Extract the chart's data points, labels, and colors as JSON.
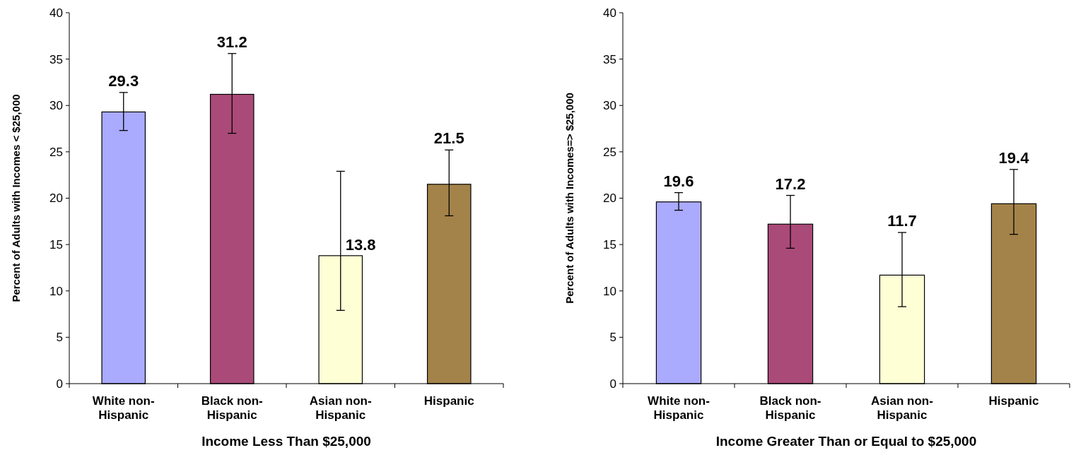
{
  "chart_data": [
    {
      "type": "bar",
      "xlabel": "Income Less Than $25,000",
      "ylabel": "Percent of Adults with Incomes < $25,000",
      "categories": [
        "White non-Hispanic",
        "Black non-Hispanic",
        "Asian non-Hispanic",
        "Hispanic"
      ],
      "values": [
        29.3,
        31.2,
        13.8,
        21.5
      ],
      "colors": [
        "#aaaaff",
        "#aa4a78",
        "#ffffd6",
        "#a4834a"
      ],
      "errors": [
        [
          27.3,
          31.4
        ],
        [
          27.0,
          35.6
        ],
        [
          7.9,
          22.9
        ],
        [
          18.1,
          25.2
        ]
      ],
      "ylim": [
        0,
        40
      ],
      "yticks": [
        0,
        5,
        10,
        15,
        20,
        25,
        30,
        35,
        40
      ],
      "data_labels": true,
      "grid": false
    },
    {
      "type": "bar",
      "xlabel": "Income Greater Than or Equal to $25,000",
      "ylabel": "Percent of Adults with Incomes=> $25,000",
      "categories": [
        "White non-Hispanic",
        "Black non-Hispanic",
        "Asian non-Hispanic",
        "Hispanic"
      ],
      "values": [
        19.6,
        17.2,
        11.7,
        19.4
      ],
      "colors": [
        "#aaaaff",
        "#aa4a78",
        "#ffffd6",
        "#a4834a"
      ],
      "errors": [
        [
          18.7,
          20.6
        ],
        [
          14.6,
          20.3
        ],
        [
          8.3,
          16.3
        ],
        [
          16.1,
          23.1
        ]
      ],
      "ylim": [
        0,
        40
      ],
      "yticks": [
        0,
        5,
        10,
        15,
        20,
        25,
        30,
        35,
        40
      ],
      "data_labels": true,
      "grid": false
    }
  ]
}
